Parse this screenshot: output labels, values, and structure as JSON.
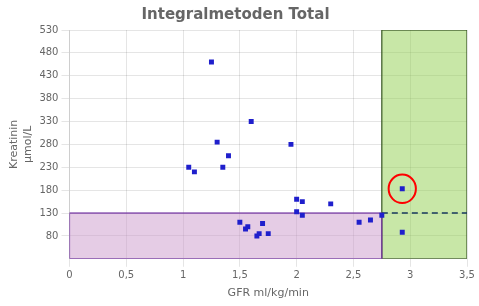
{
  "chart_data": {
    "type": "scatter",
    "title": "Integralmetoden Total",
    "xlabel": "GFR ml/kg/min",
    "ylabel": [
      "Kreatinin",
      "μmol/L"
    ],
    "x": [
      1.05,
      1.1,
      1.25,
      1.3,
      1.35,
      1.4,
      1.5,
      1.55,
      1.57,
      1.6,
      1.65,
      1.67,
      1.7,
      1.75,
      1.95,
      2.0,
      2.0,
      2.05,
      2.05,
      2.3,
      2.55,
      2.65,
      2.75,
      2.93,
      2.93
    ],
    "values": [
      230,
      220,
      460,
      285,
      230,
      255,
      110,
      95,
      100,
      330,
      80,
      85,
      107,
      85,
      280,
      133,
      160,
      155,
      125,
      150,
      110,
      115,
      125,
      183,
      88
    ],
    "color": "#1F1FCC",
    "marker": "square",
    "xlim": [
      0,
      3.5
    ],
    "ylim": [
      30,
      530
    ],
    "xticks": [
      0,
      {
        "value": 0.5,
        "label": "0,5"
      },
      1,
      {
        "value": 1.5,
        "label": "1,5"
      },
      2,
      {
        "value": 2.5,
        "label": "2,5"
      },
      3,
      {
        "value": 3.5,
        "label": "3,5"
      }
    ],
    "yticks": [
      80,
      130,
      180,
      230,
      280,
      330,
      380,
      430,
      480,
      530
    ],
    "grid": true,
    "legend": false,
    "shaded_regions": [
      {
        "x": [
          2.75,
          3.5
        ],
        "y": [
          30,
          530
        ],
        "color": "#92D050",
        "border_color": "#375623"
      },
      {
        "x": [
          0,
          2.75
        ],
        "y": [
          30,
          130
        ],
        "color": "#CC99CC",
        "border_color": "#7030A0"
      }
    ],
    "reference_line": {
      "x": [
        2.75,
        3.5
      ],
      "y": 130,
      "color": "#17375E",
      "line_style": "dashed"
    },
    "highlight": {
      "x": 2.93,
      "y": 183,
      "width": 0.24,
      "height": 62,
      "color": "red"
    }
  }
}
